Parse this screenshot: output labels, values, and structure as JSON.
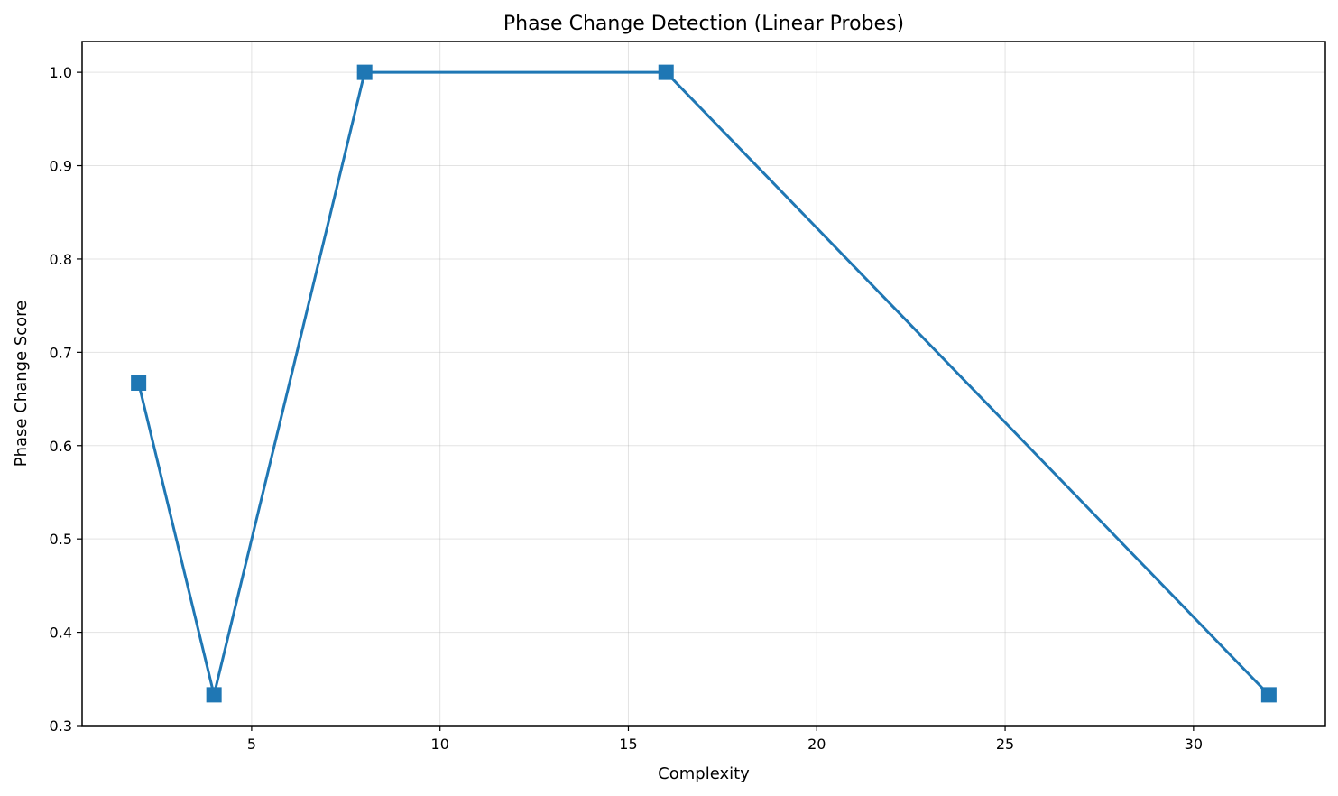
{
  "chart_data": {
    "type": "line",
    "title": "Phase Change Detection (Linear Probes)",
    "xlabel": "Complexity",
    "ylabel": "Phase Change Score",
    "xlim": [
      0.5,
      33.5
    ],
    "ylim": [
      0.3,
      1.033
    ],
    "xticks": [
      5,
      10,
      15,
      20,
      25,
      30
    ],
    "yticks": [
      0.3,
      0.4,
      0.5,
      0.6,
      0.7,
      0.8,
      0.9,
      1.0
    ],
    "xtick_labels": [
      "5",
      "10",
      "15",
      "20",
      "25",
      "30"
    ],
    "ytick_labels": [
      "0.3",
      "0.4",
      "0.5",
      "0.6",
      "0.7",
      "0.8",
      "0.9",
      "1.0"
    ],
    "grid": true,
    "series": [
      {
        "color": "#1f77b4",
        "marker": "square",
        "x": [
          2,
          4,
          8,
          16,
          32
        ],
        "y": [
          0.667,
          0.333,
          1.0,
          1.0,
          0.333
        ]
      }
    ]
  }
}
